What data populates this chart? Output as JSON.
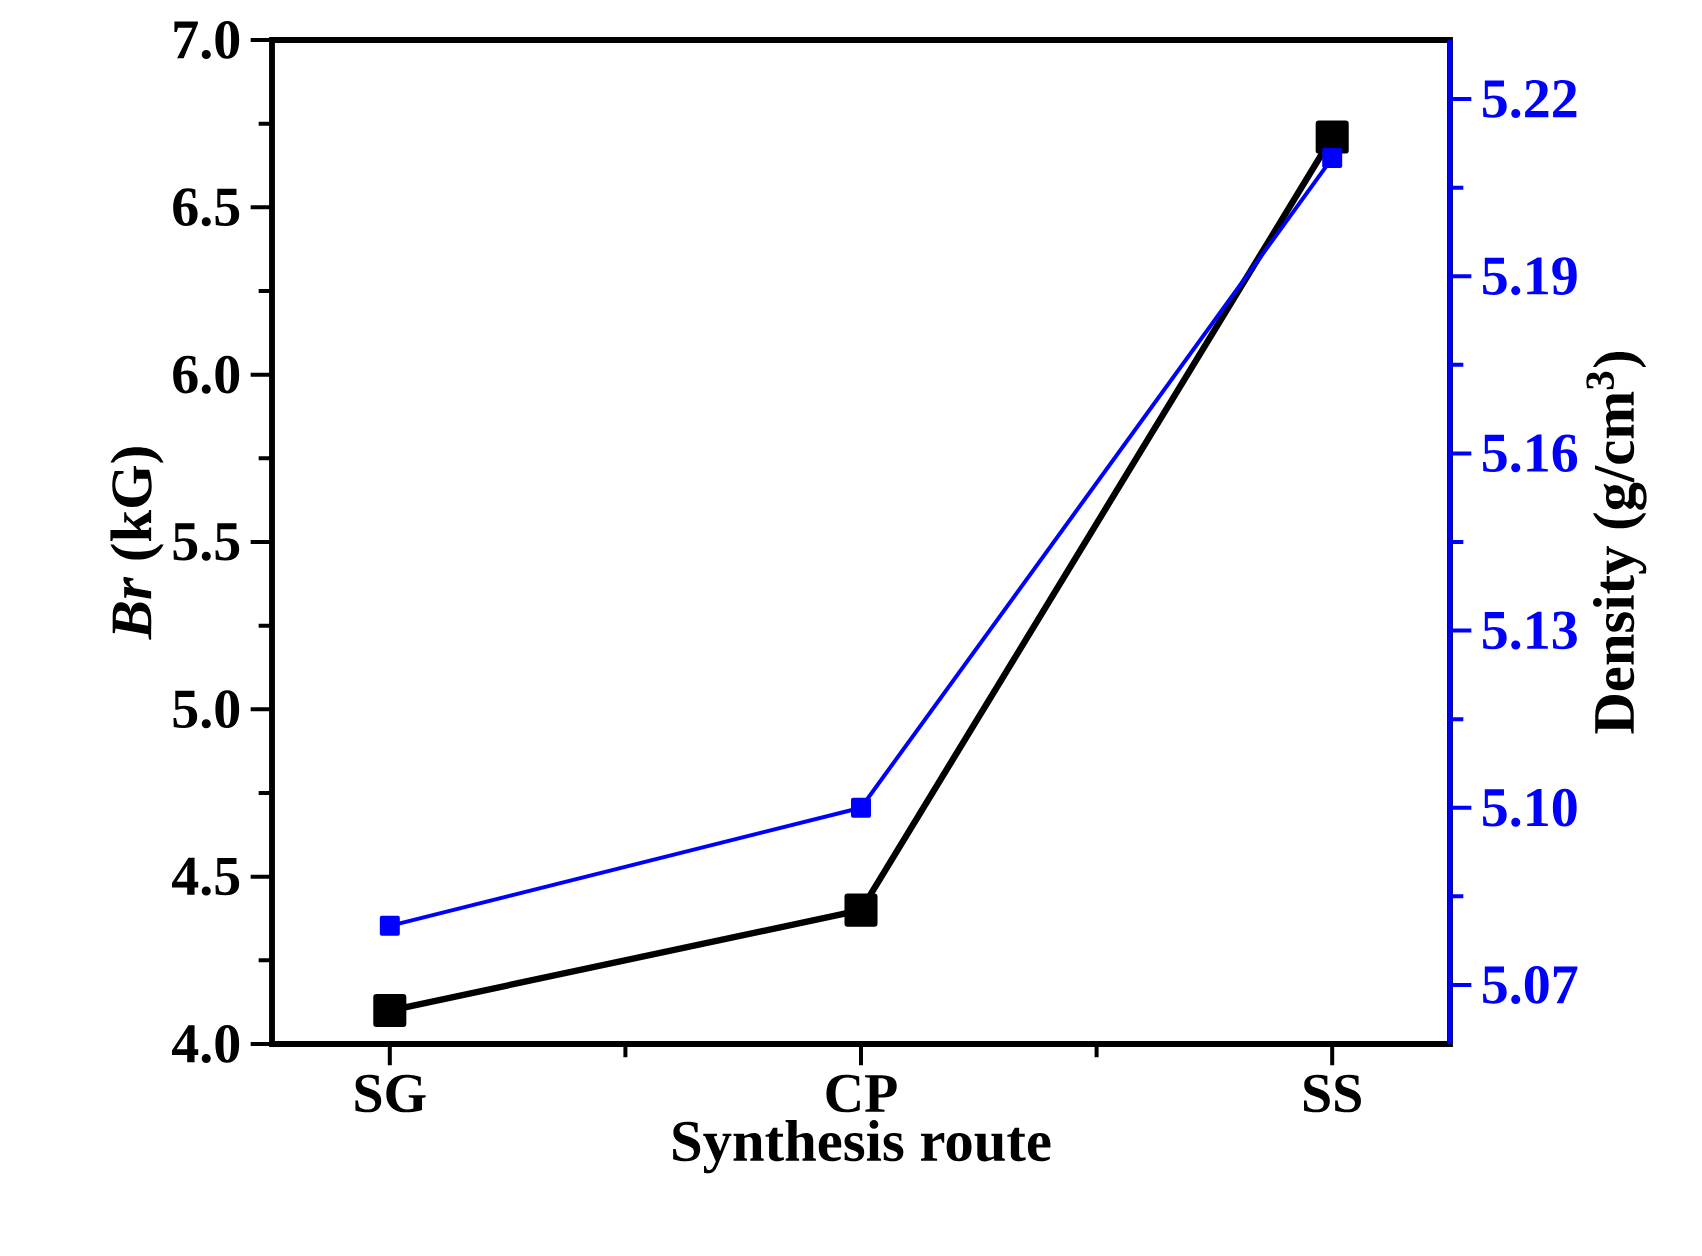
{
  "chart_data": {
    "type": "line",
    "xlabel": "Synthesis route",
    "ylabel": "*Br* (kG)",
    "y2label": "Density (g/cm$^{3}$)",
    "categories": [
      "SG",
      "CP",
      "SS"
    ],
    "series": [
      {
        "color": "#000000",
        "values": [
          4.1,
          4.4,
          6.71
        ]
      },
      {
        "color": "#0000ff",
        "values": [
          5.08,
          5.1,
          5.21
        ],
        "axis": "y2"
      }
    ],
    "ylim": [
      4.0,
      7.0
    ],
    "yticks": [
      {
        "value": 4.0,
        "label": "4.0"
      },
      4.5,
      {
        "value": 5.0,
        "label": "5.0"
      },
      5.5,
      {
        "value": 6.0,
        "label": "6.0"
      },
      6.5,
      {
        "value": 7.0,
        "label": "7.0"
      }
    ],
    "y2lim": [
      5.06,
      5.23
    ],
    "y2ticks": [
      5.07,
      {
        "value": 5.1,
        "label": "5.10"
      },
      5.13,
      5.16,
      5.19,
      5.22
    ],
    "marker": "square",
    "line_style": "solid",
    "grid": false,
    "legend": false
  }
}
